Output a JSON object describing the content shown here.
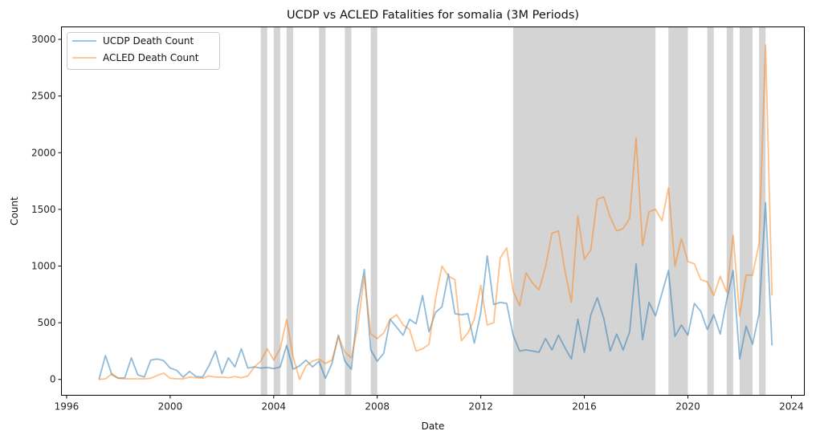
{
  "chart_data": {
    "type": "line",
    "title": "UCDP vs ACLED Fatalities for somalia (3M Periods)",
    "xlabel": "Date",
    "ylabel": "Count",
    "xlim": [
      1995.8,
      2024.5
    ],
    "ylim": [
      -140,
      3110
    ],
    "x_ticks": [
      1996,
      2000,
      2004,
      2008,
      2012,
      2016,
      2020,
      2024
    ],
    "y_ticks": [
      0,
      500,
      1000,
      1500,
      2000,
      2500,
      3000
    ],
    "grid": false,
    "legend_position": "top-left",
    "colors": {
      "ucdp": "#1f77b4",
      "acled": "#ff7f0e",
      "shade": "#a9a9a9"
    },
    "shaded_periods": [
      [
        2003.5,
        2003.75
      ],
      [
        2004.0,
        2004.25
      ],
      [
        2004.5,
        2004.75
      ],
      [
        2005.75,
        2006.0
      ],
      [
        2006.75,
        2007.0
      ],
      [
        2007.75,
        2008.0
      ],
      [
        2013.25,
        2013.5
      ],
      [
        2013.5,
        2013.75
      ],
      [
        2013.75,
        2014.0
      ],
      [
        2014.0,
        2014.25
      ],
      [
        2014.25,
        2014.5
      ],
      [
        2014.5,
        2014.75
      ],
      [
        2014.75,
        2015.0
      ],
      [
        2015.0,
        2015.25
      ],
      [
        2015.25,
        2015.5
      ],
      [
        2015.5,
        2015.75
      ],
      [
        2015.75,
        2016.0
      ],
      [
        2016.0,
        2016.25
      ],
      [
        2016.25,
        2016.5
      ],
      [
        2016.5,
        2016.75
      ],
      [
        2016.75,
        2017.0
      ],
      [
        2017.0,
        2017.25
      ],
      [
        2017.25,
        2017.5
      ],
      [
        2017.5,
        2017.75
      ],
      [
        2017.75,
        2018.0
      ],
      [
        2018.0,
        2018.25
      ],
      [
        2018.25,
        2018.5
      ],
      [
        2018.5,
        2018.75
      ],
      [
        2019.25,
        2019.5
      ],
      [
        2019.5,
        2019.75
      ],
      [
        2019.75,
        2020.0
      ],
      [
        2020.75,
        2021.0
      ],
      [
        2021.5,
        2021.75
      ],
      [
        2022.0,
        2022.25
      ],
      [
        2022.25,
        2022.5
      ],
      [
        2022.75,
        2023.0
      ]
    ],
    "series": [
      {
        "name": "UCDP Death Count",
        "x": [
          1997.25,
          1997.5,
          1997.75,
          1998.0,
          1998.25,
          1998.5,
          1998.75,
          1999.0,
          1999.25,
          1999.5,
          1999.75,
          2000.0,
          2000.25,
          2000.5,
          2000.75,
          2001.0,
          2001.25,
          2001.5,
          2001.75,
          2002.0,
          2002.25,
          2002.5,
          2002.75,
          2003.0,
          2003.25,
          2003.5,
          2003.75,
          2004.0,
          2004.25,
          2004.5,
          2004.75,
          2005.0,
          2005.25,
          2005.5,
          2005.75,
          2006.0,
          2006.25,
          2006.5,
          2006.75,
          2007.0,
          2007.25,
          2007.5,
          2007.75,
          2008.0,
          2008.25,
          2008.5,
          2008.75,
          2009.0,
          2009.25,
          2009.5,
          2009.75,
          2010.0,
          2010.25,
          2010.5,
          2010.75,
          2011.0,
          2011.25,
          2011.5,
          2011.75,
          2012.0,
          2012.25,
          2012.5,
          2012.75,
          2013.0,
          2013.25,
          2013.5,
          2013.75,
          2014.0,
          2014.25,
          2014.5,
          2014.75,
          2015.0,
          2015.25,
          2015.5,
          2015.75,
          2016.0,
          2016.25,
          2016.5,
          2016.75,
          2017.0,
          2017.25,
          2017.5,
          2017.75,
          2018.0,
          2018.25,
          2018.5,
          2018.75,
          2019.0,
          2019.25,
          2019.5,
          2019.75,
          2020.0,
          2020.25,
          2020.5,
          2020.75,
          2021.0,
          2021.25,
          2021.5,
          2021.75,
          2022.0,
          2022.25,
          2022.5,
          2022.75,
          2023.0,
          2023.25
        ],
        "values": [
          0,
          210,
          40,
          10,
          15,
          190,
          40,
          20,
          170,
          180,
          165,
          100,
          80,
          20,
          70,
          25,
          20,
          120,
          250,
          50,
          190,
          110,
          270,
          100,
          110,
          100,
          105,
          95,
          110,
          300,
          90,
          120,
          170,
          110,
          160,
          10,
          140,
          390,
          160,
          90,
          640,
          970,
          260,
          160,
          230,
          530,
          460,
          390,
          530,
          490,
          740,
          420,
          590,
          640,
          930,
          580,
          570,
          580,
          320,
          590,
          1090,
          660,
          680,
          670,
          390,
          250,
          260,
          250,
          240,
          360,
          260,
          390,
          280,
          180,
          530,
          240,
          570,
          720,
          540,
          250,
          400,
          260,
          420,
          1020,
          350,
          680,
          560,
          760,
          960,
          380,
          480,
          390,
          670,
          600,
          440,
          570,
          400,
          700,
          960,
          180,
          470,
          310,
          580,
          1560,
          300
        ]
      },
      {
        "name": "ACLED Death Count",
        "x": [
          1997.25,
          1997.5,
          1997.75,
          1998.0,
          1998.25,
          1998.5,
          1998.75,
          1999.0,
          1999.25,
          1999.5,
          1999.75,
          2000.0,
          2000.25,
          2000.5,
          2000.75,
          2001.0,
          2001.25,
          2001.5,
          2001.75,
          2002.0,
          2002.25,
          2002.5,
          2002.75,
          2003.0,
          2003.25,
          2003.5,
          2003.75,
          2004.0,
          2004.25,
          2004.5,
          2004.75,
          2005.0,
          2005.25,
          2005.5,
          2005.75,
          2006.0,
          2006.25,
          2006.5,
          2006.75,
          2007.0,
          2007.25,
          2007.5,
          2007.75,
          2008.0,
          2008.25,
          2008.5,
          2008.75,
          2009.0,
          2009.25,
          2009.5,
          2009.75,
          2010.0,
          2010.25,
          2010.5,
          2010.75,
          2011.0,
          2011.25,
          2011.5,
          2011.75,
          2012.0,
          2012.25,
          2012.5,
          2012.75,
          2013.0,
          2013.25,
          2013.5,
          2013.75,
          2014.0,
          2014.25,
          2014.5,
          2014.75,
          2015.0,
          2015.25,
          2015.5,
          2015.75,
          2016.0,
          2016.25,
          2016.5,
          2016.75,
          2017.0,
          2017.25,
          2017.5,
          2017.75,
          2018.0,
          2018.25,
          2018.5,
          2018.75,
          2019.0,
          2019.25,
          2019.5,
          2019.75,
          2020.0,
          2020.25,
          2020.5,
          2020.75,
          2021.0,
          2021.25,
          2021.5,
          2021.75,
          2022.0,
          2022.25,
          2022.5,
          2022.75,
          2023.0,
          2023.25
        ],
        "values": [
          0,
          5,
          50,
          10,
          5,
          5,
          5,
          5,
          10,
          35,
          55,
          10,
          5,
          5,
          20,
          15,
          10,
          30,
          20,
          20,
          15,
          25,
          15,
          30,
          110,
          160,
          270,
          170,
          270,
          530,
          200,
          0,
          120,
          160,
          180,
          140,
          170,
          380,
          240,
          190,
          470,
          910,
          400,
          360,
          410,
          530,
          570,
          480,
          440,
          250,
          270,
          310,
          710,
          1000,
          910,
          880,
          340,
          410,
          530,
          830,
          480,
          500,
          1070,
          1160,
          780,
          650,
          940,
          850,
          790,
          990,
          1290,
          1310,
          960,
          680,
          1440,
          1060,
          1140,
          1590,
          1610,
          1430,
          1310,
          1330,
          1420,
          2130,
          1180,
          1480,
          1500,
          1400,
          1690,
          1000,
          1240,
          1040,
          1020,
          880,
          860,
          740,
          910,
          770,
          1270,
          560,
          920,
          920,
          1200,
          2950,
          740
        ]
      }
    ]
  }
}
